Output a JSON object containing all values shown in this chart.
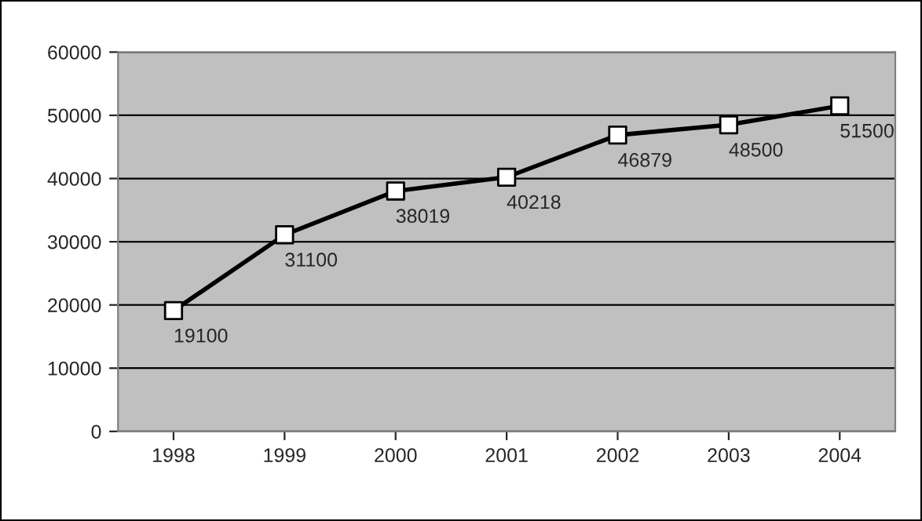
{
  "chart_data": {
    "type": "line",
    "categories": [
      "1998",
      "1999",
      "2000",
      "2001",
      "2002",
      "2003",
      "2004"
    ],
    "series": [
      {
        "color": "#000000",
        "values": [
          19100,
          31100,
          38019,
          40218,
          46879,
          48500,
          51500
        ]
      }
    ],
    "ylim": [
      0,
      60000
    ],
    "yticks": [
      0,
      10000,
      20000,
      30000,
      40000,
      50000,
      60000
    ],
    "grid": "y",
    "legend": false,
    "marker": "square",
    "line_style": "solid",
    "data_labels": true
  }
}
